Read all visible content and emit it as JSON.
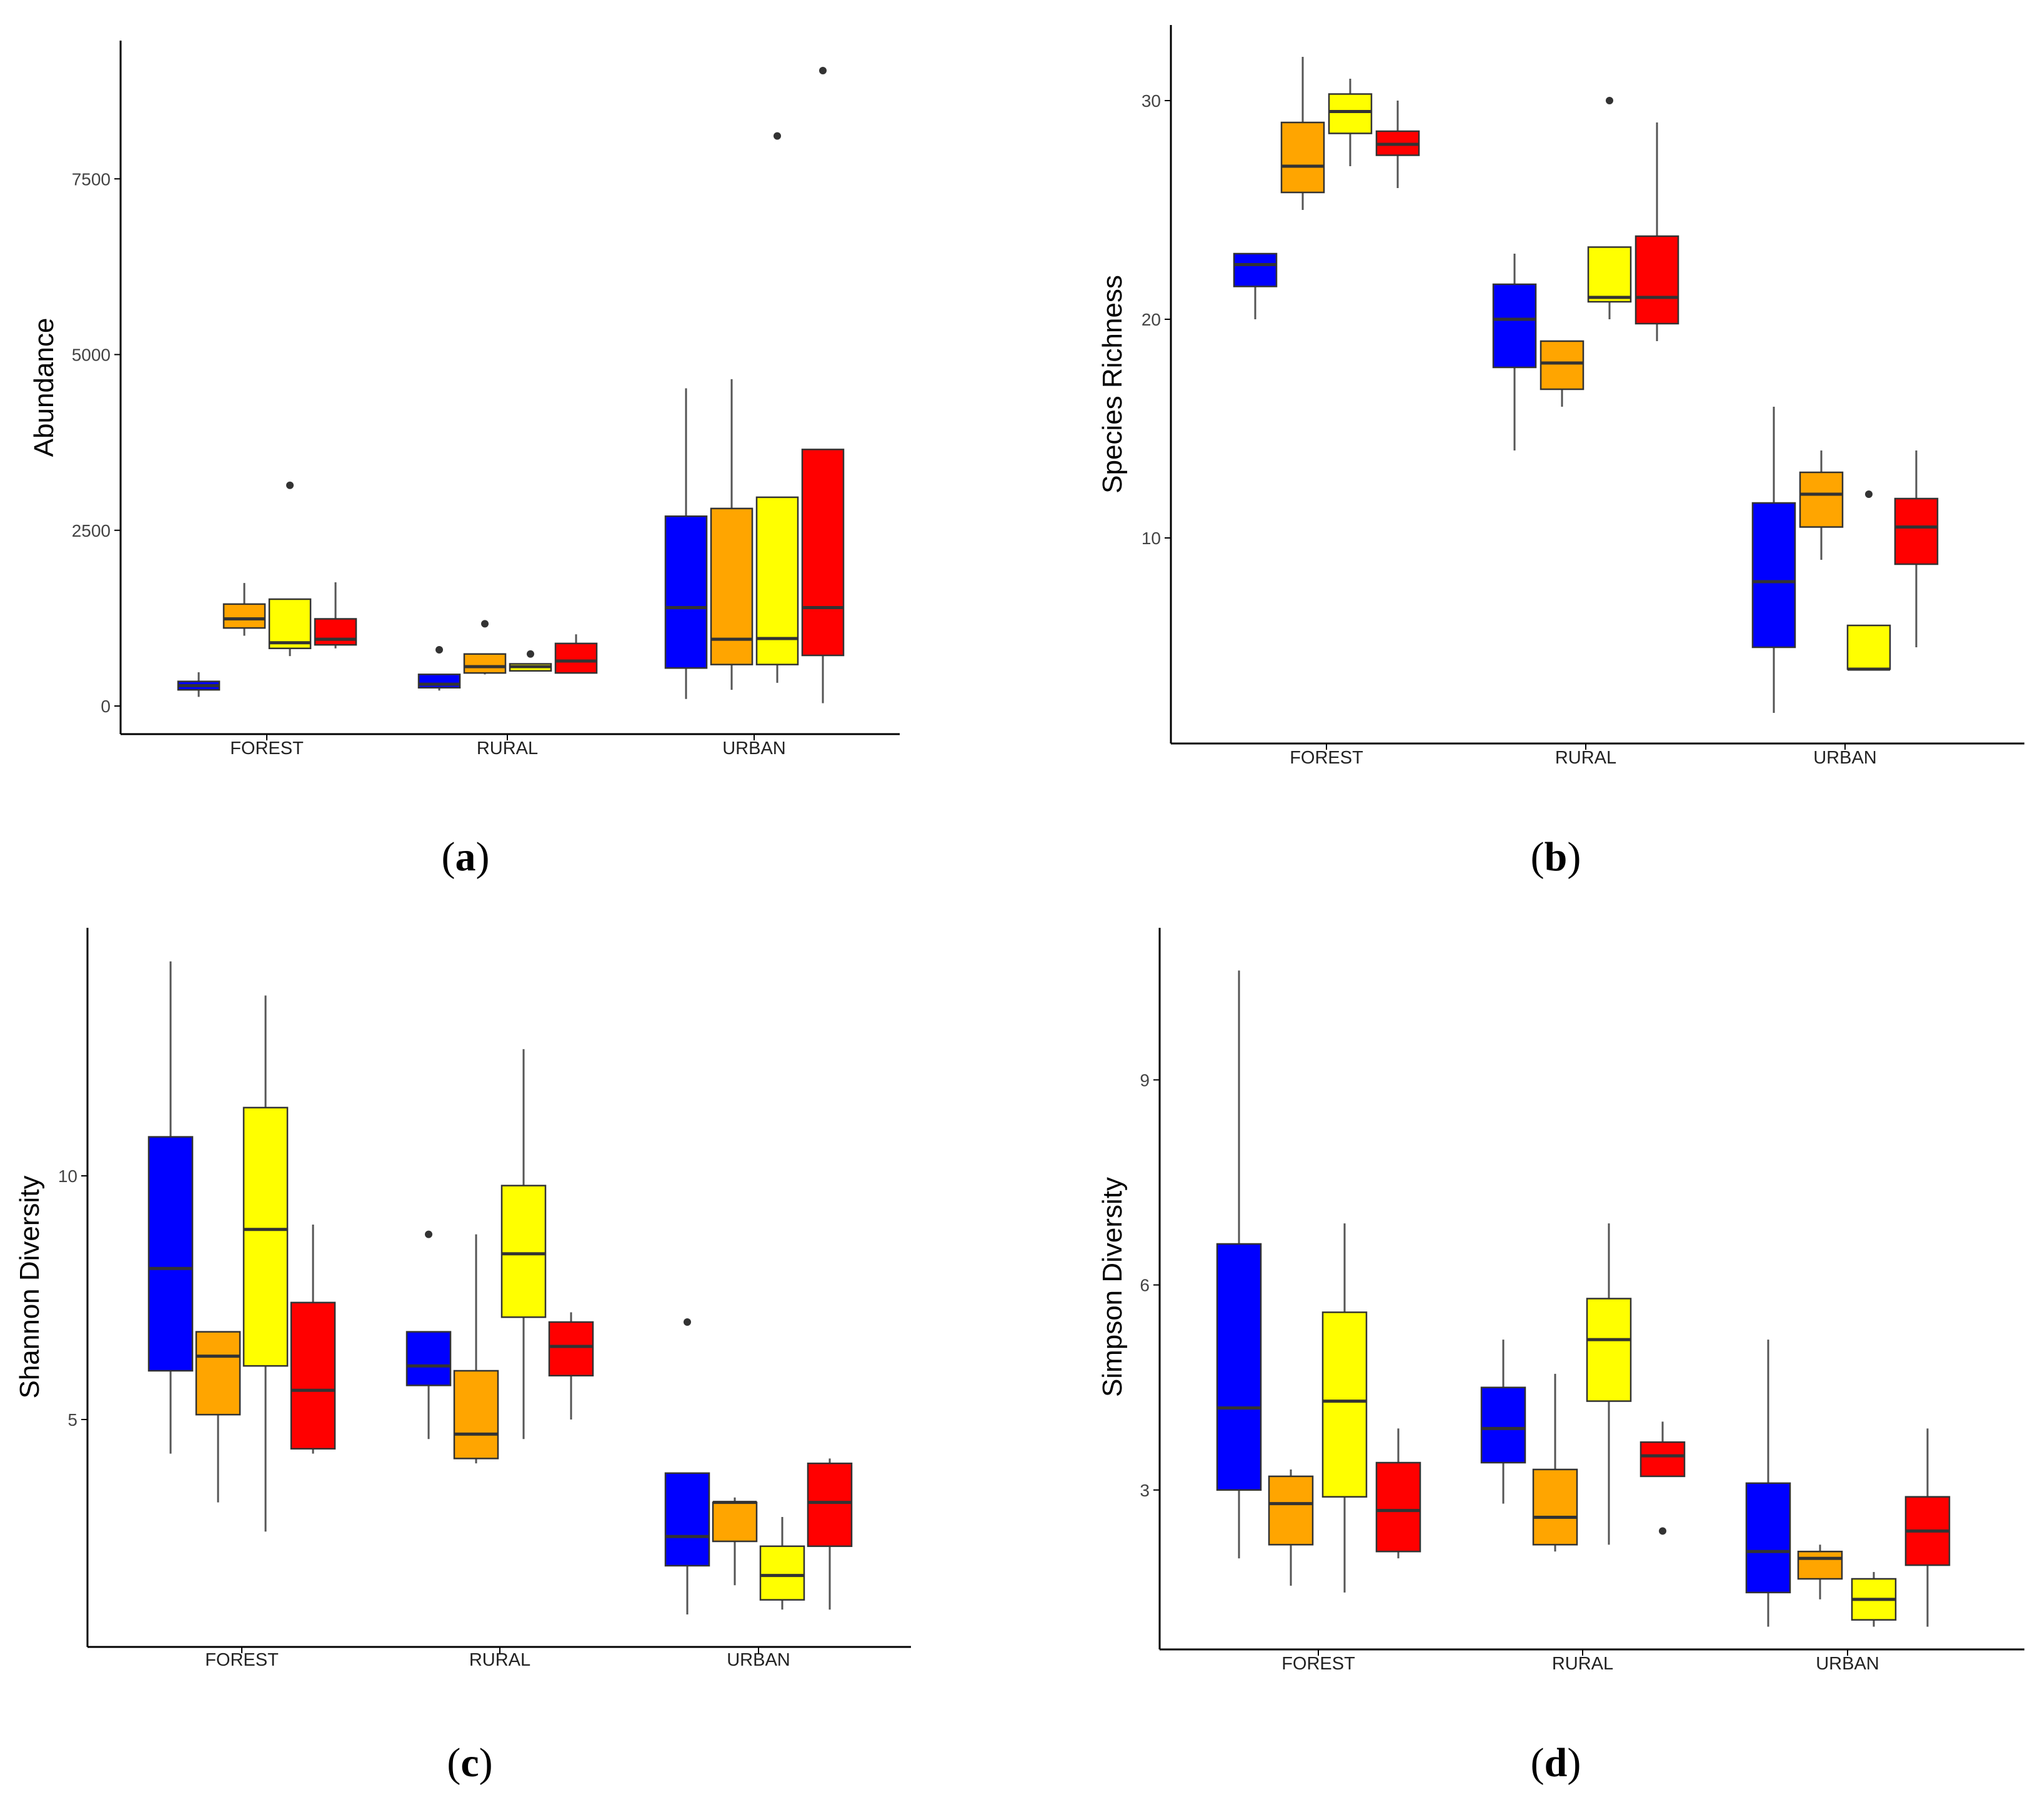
{
  "figure": {
    "panels": [
      "a",
      "b",
      "c",
      "d"
    ]
  },
  "colors": {
    "box_fill": [
      "#0000ff",
      "#ffa500",
      "#ffff00",
      "#ff0000"
    ],
    "box_stroke": "#333333",
    "median": "#333333",
    "whisker": "#555555",
    "outlier": "#333333",
    "axis": "#000000"
  },
  "chart_data": [
    {
      "type": "boxplot",
      "panel_label": "a",
      "ylabel": "Abundance",
      "categories": [
        "FOREST",
        "RURAL",
        "URBAN"
      ],
      "yticks": [
        0,
        2500,
        5000,
        7500
      ],
      "ylim": [
        -400,
        9550
      ],
      "boxes": [
        [
          {
            "min": 130,
            "q1": 230,
            "median": 290,
            "q3": 350,
            "max": 480,
            "outliers": []
          },
          {
            "min": 1000,
            "q1": 1110,
            "median": 1240,
            "q3": 1450,
            "max": 1750,
            "outliers": []
          },
          {
            "min": 710,
            "q1": 820,
            "median": 900,
            "q3": 1520,
            "max": 1520,
            "outliers": [
              3140
            ]
          },
          {
            "min": 820,
            "q1": 870,
            "median": 950,
            "q3": 1240,
            "max": 1760,
            "outliers": []
          }
        ],
        [
          {
            "min": 220,
            "q1": 260,
            "median": 310,
            "q3": 450,
            "max": 450,
            "outliers": [
              800
            ]
          },
          {
            "min": 450,
            "q1": 470,
            "median": 560,
            "q3": 740,
            "max": 740,
            "outliers": [
              1170
            ]
          },
          {
            "min": 500,
            "q1": 500,
            "median": 560,
            "q3": 600,
            "max": 600,
            "outliers": [
              740
            ]
          },
          {
            "min": 470,
            "q1": 470,
            "median": 640,
            "q3": 890,
            "max": 1020,
            "outliers": []
          }
        ],
        [
          {
            "min": 100,
            "q1": 540,
            "median": 1400,
            "q3": 2700,
            "max": 4520,
            "outliers": []
          },
          {
            "min": 230,
            "q1": 590,
            "median": 950,
            "q3": 2810,
            "max": 4650,
            "outliers": []
          },
          {
            "min": 330,
            "q1": 590,
            "median": 960,
            "q3": 2970,
            "max": 2970,
            "outliers": [
              8110
            ]
          },
          {
            "min": 40,
            "q1": 720,
            "median": 1400,
            "q3": 3650,
            "max": 3650,
            "outliers": [
              9040
            ]
          }
        ]
      ]
    },
    {
      "type": "boxplot",
      "panel_label": "b",
      "ylabel": "Species Richness",
      "categories": [
        "FOREST",
        "RURAL",
        "URBAN"
      ],
      "yticks": [
        10,
        20,
        30
      ],
      "ylim": [
        0.6,
        33.5
      ],
      "boxes": [
        [
          {
            "min": 20,
            "q1": 21.5,
            "median": 22.5,
            "q3": 23,
            "max": 23,
            "outliers": []
          },
          {
            "min": 25,
            "q1": 25.8,
            "median": 27,
            "q3": 29,
            "max": 32,
            "outliers": []
          },
          {
            "min": 27,
            "q1": 28.5,
            "median": 29.5,
            "q3": 30.3,
            "max": 31,
            "outliers": []
          },
          {
            "min": 26,
            "q1": 27.5,
            "median": 28,
            "q3": 28.6,
            "max": 30,
            "outliers": []
          }
        ],
        [
          {
            "min": 14,
            "q1": 17.8,
            "median": 20,
            "q3": 21.6,
            "max": 23,
            "outliers": []
          },
          {
            "min": 16,
            "q1": 16.8,
            "median": 18,
            "q3": 19,
            "max": 19,
            "outliers": []
          },
          {
            "min": 20,
            "q1": 20.8,
            "median": 21,
            "q3": 23.3,
            "max": 23.3,
            "outliers": [
              30
            ]
          },
          {
            "min": 19,
            "q1": 19.8,
            "median": 21,
            "q3": 23.8,
            "max": 29,
            "outliers": []
          }
        ],
        [
          {
            "min": 2,
            "q1": 5,
            "median": 8,
            "q3": 11.6,
            "max": 16,
            "outliers": []
          },
          {
            "min": 9,
            "q1": 10.5,
            "median": 12,
            "q3": 13,
            "max": 14,
            "outliers": []
          },
          {
            "min": 4,
            "q1": 4,
            "median": 4,
            "q3": 6,
            "max": 6,
            "outliers": [
              12
            ]
          },
          {
            "min": 5,
            "q1": 8.8,
            "median": 10.5,
            "q3": 11.8,
            "max": 14,
            "outliers": []
          }
        ]
      ]
    },
    {
      "type": "boxplot",
      "panel_label": "c",
      "ylabel": "Shannon Diversity",
      "categories": [
        "FOREST",
        "RURAL",
        "URBAN"
      ],
      "yticks": [
        5,
        10
      ],
      "ylim": [
        0.3,
        15
      ],
      "boxes": [
        [
          {
            "min": 4.3,
            "q1": 6.0,
            "median": 8.1,
            "q3": 10.8,
            "max": 14.4,
            "outliers": []
          },
          {
            "min": 3.3,
            "q1": 5.1,
            "median": 6.3,
            "q3": 6.8,
            "max": 6.8,
            "outliers": []
          },
          {
            "min": 2.7,
            "q1": 6.1,
            "median": 8.9,
            "q3": 11.4,
            "max": 13.7,
            "outliers": []
          },
          {
            "min": 4.3,
            "q1": 4.4,
            "median": 5.6,
            "q3": 7.4,
            "max": 9.0,
            "outliers": []
          }
        ],
        [
          {
            "min": 4.6,
            "q1": 5.7,
            "median": 6.1,
            "q3": 6.8,
            "max": 6.8,
            "outliers": [
              8.8
            ]
          },
          {
            "min": 4.1,
            "q1": 4.2,
            "median": 4.7,
            "q3": 6.0,
            "max": 8.8,
            "outliers": []
          },
          {
            "min": 4.6,
            "q1": 7.1,
            "median": 8.4,
            "q3": 9.8,
            "max": 12.6,
            "outliers": []
          },
          {
            "min": 5.0,
            "q1": 5.9,
            "median": 6.5,
            "q3": 7.0,
            "max": 7.2,
            "outliers": []
          }
        ],
        [
          {
            "min": 1.0,
            "q1": 2.0,
            "median": 2.6,
            "q3": 3.9,
            "max": 3.9,
            "outliers": [
              7.0
            ]
          },
          {
            "min": 1.6,
            "q1": 2.5,
            "median": 3.3,
            "q3": 3.3,
            "max": 3.4,
            "outliers": []
          },
          {
            "min": 1.1,
            "q1": 1.3,
            "median": 1.8,
            "q3": 2.4,
            "max": 3.0,
            "outliers": []
          },
          {
            "min": 1.1,
            "q1": 2.4,
            "median": 3.3,
            "q3": 4.1,
            "max": 4.2,
            "outliers": []
          }
        ]
      ]
    },
    {
      "type": "boxplot",
      "panel_label": "d",
      "ylabel": "Simpson Diversity",
      "categories": [
        "FOREST",
        "RURAL",
        "URBAN"
      ],
      "yticks": [
        3,
        6,
        9
      ],
      "ylim": [
        0.7,
        11.3
      ],
      "boxes": [
        [
          {
            "min": 2.0,
            "q1": 3.0,
            "median": 4.2,
            "q3": 6.6,
            "max": 10.6,
            "outliers": []
          },
          {
            "min": 1.6,
            "q1": 2.2,
            "median": 2.8,
            "q3": 3.2,
            "max": 3.3,
            "outliers": []
          },
          {
            "min": 1.5,
            "q1": 2.9,
            "median": 4.3,
            "q3": 5.6,
            "max": 6.9,
            "outliers": []
          },
          {
            "min": 2.0,
            "q1": 2.1,
            "median": 2.7,
            "q3": 3.4,
            "max": 3.9,
            "outliers": []
          }
        ],
        [
          {
            "min": 2.8,
            "q1": 3.4,
            "median": 3.9,
            "q3": 4.5,
            "max": 5.2,
            "outliers": []
          },
          {
            "min": 2.1,
            "q1": 2.2,
            "median": 2.6,
            "q3": 3.3,
            "max": 4.7,
            "outliers": []
          },
          {
            "min": 2.2,
            "q1": 4.3,
            "median": 5.2,
            "q3": 5.8,
            "max": 6.9,
            "outliers": []
          },
          {
            "min": 3.2,
            "q1": 3.2,
            "median": 3.5,
            "q3": 3.7,
            "max": 4.0,
            "outliers": [
              2.4
            ]
          }
        ],
        [
          {
            "min": 1.0,
            "q1": 1.5,
            "median": 2.1,
            "q3": 3.1,
            "max": 5.2,
            "outliers": []
          },
          {
            "min": 1.4,
            "q1": 1.7,
            "median": 2.0,
            "q3": 2.1,
            "max": 2.2,
            "outliers": []
          },
          {
            "min": 1.0,
            "q1": 1.1,
            "median": 1.4,
            "q3": 1.7,
            "max": 1.8,
            "outliers": []
          },
          {
            "min": 1.0,
            "q1": 1.9,
            "median": 2.4,
            "q3": 2.9,
            "max": 3.9,
            "outliers": []
          }
        ]
      ]
    }
  ]
}
